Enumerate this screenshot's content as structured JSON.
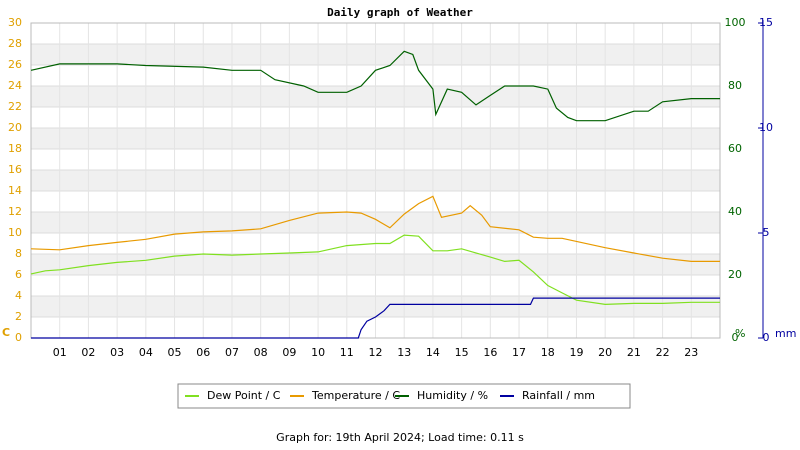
{
  "chart_data": {
    "type": "line",
    "title": "Daily graph of Weather",
    "footer": "Graph for: 19th April 2024; Load time: 0.11 s",
    "ylabel": "C",
    "y2label": "%",
    "y3label": "mm",
    "xlim": [
      0,
      24
    ],
    "xticks": [
      {
        "value": 1,
        "label": "01"
      },
      {
        "value": 2,
        "label": "02"
      },
      {
        "value": 3,
        "label": "03"
      },
      {
        "value": 4,
        "label": "04"
      },
      {
        "value": 5,
        "label": "05"
      },
      {
        "value": 6,
        "label": "06"
      },
      {
        "value": 7,
        "label": "07"
      },
      {
        "value": 8,
        "label": "08"
      },
      {
        "value": 9,
        "label": "09"
      },
      10,
      11,
      12,
      13,
      14,
      15,
      16,
      17,
      18,
      19,
      20,
      21,
      22,
      23
    ],
    "ylim": [
      0,
      30
    ],
    "yticks": [
      0,
      2,
      4,
      6,
      8,
      10,
      12,
      14,
      16,
      18,
      20,
      22,
      24,
      26,
      28,
      30
    ],
    "y2lim": [
      0,
      100
    ],
    "y2ticks": [
      0,
      20,
      40,
      60,
      80,
      100
    ],
    "y3lim": [
      0,
      15
    ],
    "y3ticks": [
      0,
      5,
      10,
      15
    ],
    "grid": true,
    "series": [
      {
        "name": "Dew Point / C",
        "color": "#80e020",
        "axis": "y",
        "x": [
          0,
          0.5,
          1,
          2,
          3,
          4,
          5,
          6,
          7,
          8,
          9,
          10,
          11,
          12,
          12.5,
          13,
          13.5,
          14,
          14.5,
          15,
          16,
          16.5,
          17,
          17.5,
          18,
          18.5,
          19,
          20,
          21,
          22,
          23,
          24
        ],
        "values": [
          6.1,
          6.4,
          6.5,
          6.9,
          7.2,
          7.4,
          7.8,
          8.0,
          7.9,
          8.0,
          8.1,
          8.2,
          8.8,
          9.0,
          9.0,
          9.8,
          9.7,
          8.3,
          8.3,
          8.5,
          7.7,
          7.3,
          7.4,
          6.3,
          5.0,
          4.3,
          3.6,
          3.2,
          3.3,
          3.3,
          3.4,
          3.4
        ]
      },
      {
        "name": "Temperature / C",
        "color": "#e89a00",
        "axis": "y",
        "x": [
          0,
          1,
          2,
          3,
          4,
          5,
          6,
          7,
          8,
          9,
          10,
          11,
          11.5,
          12,
          12.5,
          13,
          13.5,
          14,
          14.3,
          15,
          15.3,
          15.7,
          16,
          17,
          17.5,
          18,
          18.5,
          19,
          20,
          21,
          22,
          23,
          24
        ],
        "values": [
          8.5,
          8.4,
          8.8,
          9.1,
          9.4,
          9.9,
          10.1,
          10.2,
          10.4,
          11.2,
          11.9,
          12.0,
          11.9,
          11.3,
          10.5,
          11.8,
          12.8,
          13.5,
          11.5,
          11.9,
          12.6,
          11.7,
          10.6,
          10.3,
          9.6,
          9.5,
          9.5,
          9.2,
          8.6,
          8.1,
          7.6,
          7.3,
          7.3
        ]
      },
      {
        "name": "Humidity / %",
        "color": "#006000",
        "axis": "y2",
        "x": [
          0,
          1,
          2,
          3,
          4,
          6,
          7,
          8,
          8.5,
          9.5,
          10,
          11,
          11.5,
          12,
          12.5,
          13,
          13.3,
          13.5,
          14,
          14.1,
          14.5,
          15,
          15.5,
          16,
          16.5,
          17,
          17.5,
          18,
          18.3,
          18.7,
          19,
          20,
          21,
          21.5,
          22,
          23,
          24
        ],
        "values": [
          85,
          87,
          87,
          87,
          86.5,
          86,
          85,
          85,
          82,
          80,
          78,
          78,
          80,
          85,
          86.5,
          91,
          90,
          85,
          79,
          71,
          79,
          78,
          74,
          77,
          80,
          80,
          80,
          79,
          73,
          70,
          69,
          69,
          72,
          72,
          75,
          76,
          76
        ]
      },
      {
        "name": "Rainfall / mm",
        "color": "#0000a0",
        "axis": "y3",
        "x": [
          0,
          11.4,
          11.5,
          11.7,
          12,
          12.3,
          12.5,
          17.4,
          17.5,
          24
        ],
        "values": [
          0,
          0,
          0.4,
          0.8,
          1.0,
          1.3,
          1.6,
          1.6,
          1.9,
          1.9
        ]
      }
    ]
  }
}
